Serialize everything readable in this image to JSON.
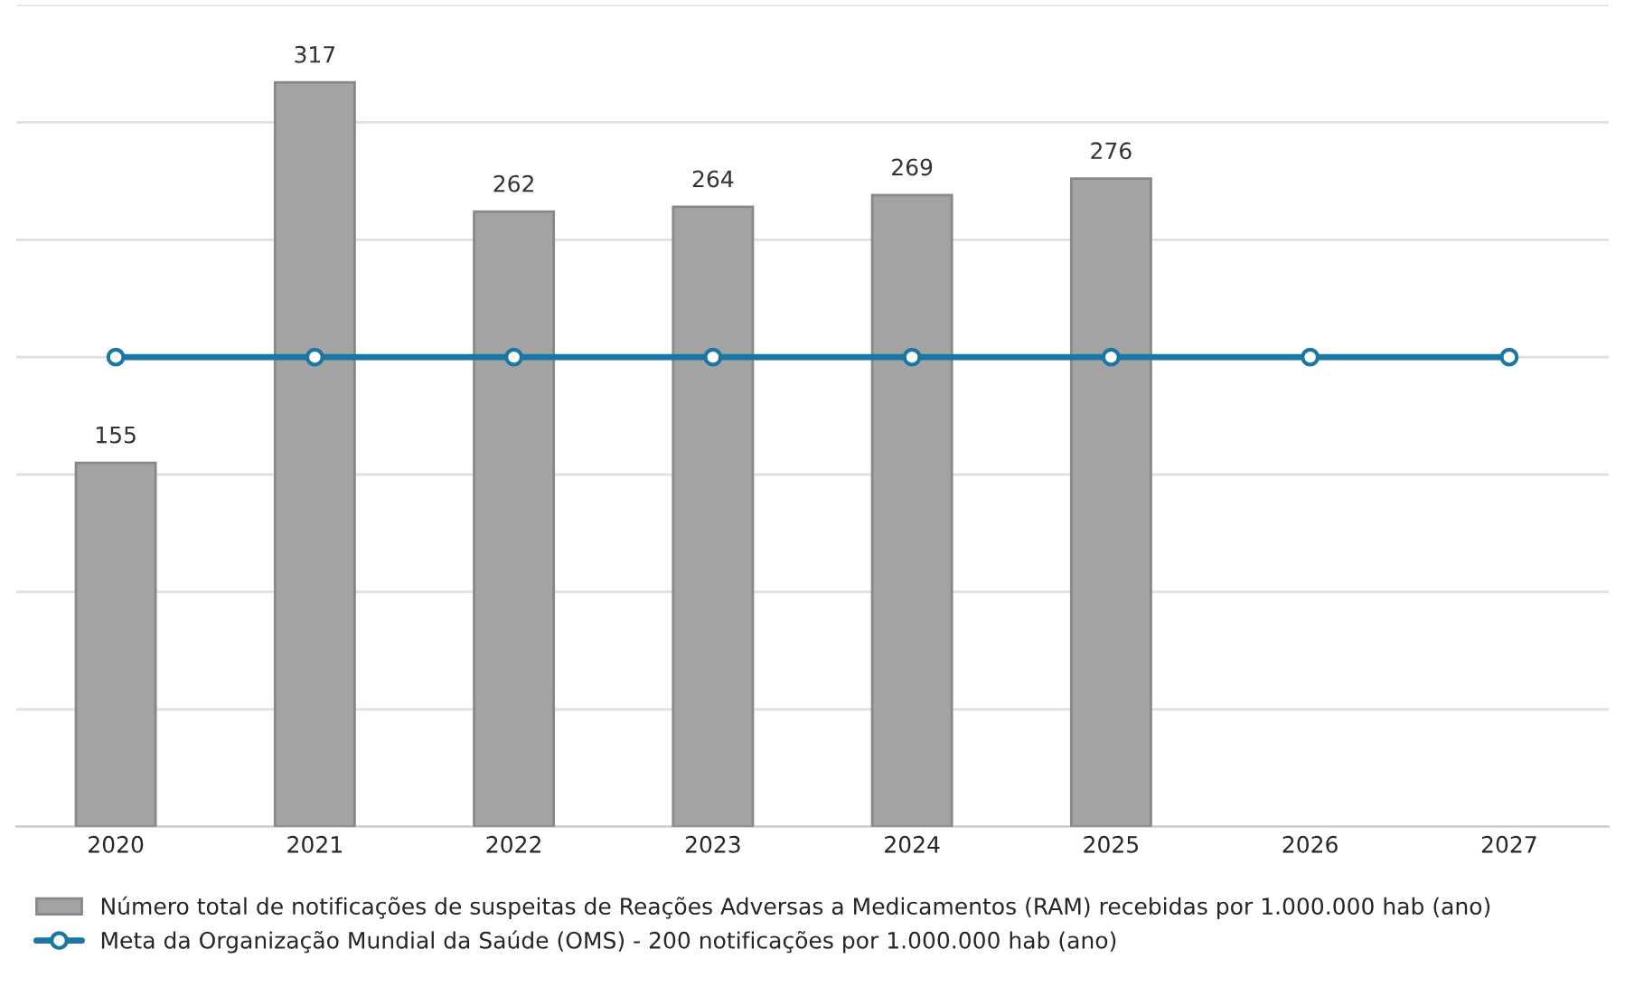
{
  "chart_data": {
    "type": "bar",
    "categories": [
      "2020",
      "2021",
      "2022",
      "2023",
      "2024",
      "2025",
      "2026",
      "2027"
    ],
    "series": [
      {
        "name": "Número total de notificações de suspeitas de Reações Adversas a Medicamentos (RAM) recebidas por 1.000.000 hab (ano)",
        "color": "#a3a3a3",
        "values": [
          155,
          317,
          262,
          264,
          269,
          276,
          null,
          null
        ],
        "value_labels": [
          "155",
          "317",
          "262",
          "264",
          "269",
          "276",
          null,
          null
        ]
      },
      {
        "name": "Meta da Organização Mundial da Saúde (OMS) - 200 notificações por 1.000.000 hab (ano)",
        "type": "line",
        "color": "#1a77a3",
        "values": [
          200,
          200,
          200,
          200,
          200,
          200,
          200,
          200
        ],
        "marker": "circle",
        "line_style": "solid"
      }
    ],
    "ylim": [
      0,
      350
    ],
    "yticks": [
      {
        "value": 0,
        "label": null
      },
      {
        "value": 50,
        "label": null
      },
      {
        "value": 100,
        "label": null
      },
      {
        "value": 150,
        "label": null
      },
      {
        "value": 200,
        "label": null
      },
      {
        "value": 250,
        "label": null
      },
      {
        "value": 300,
        "label": null
      },
      {
        "value": 350,
        "label": null
      }
    ],
    "grid": "y",
    "legend": "bottom",
    "tick_labels": "x"
  }
}
